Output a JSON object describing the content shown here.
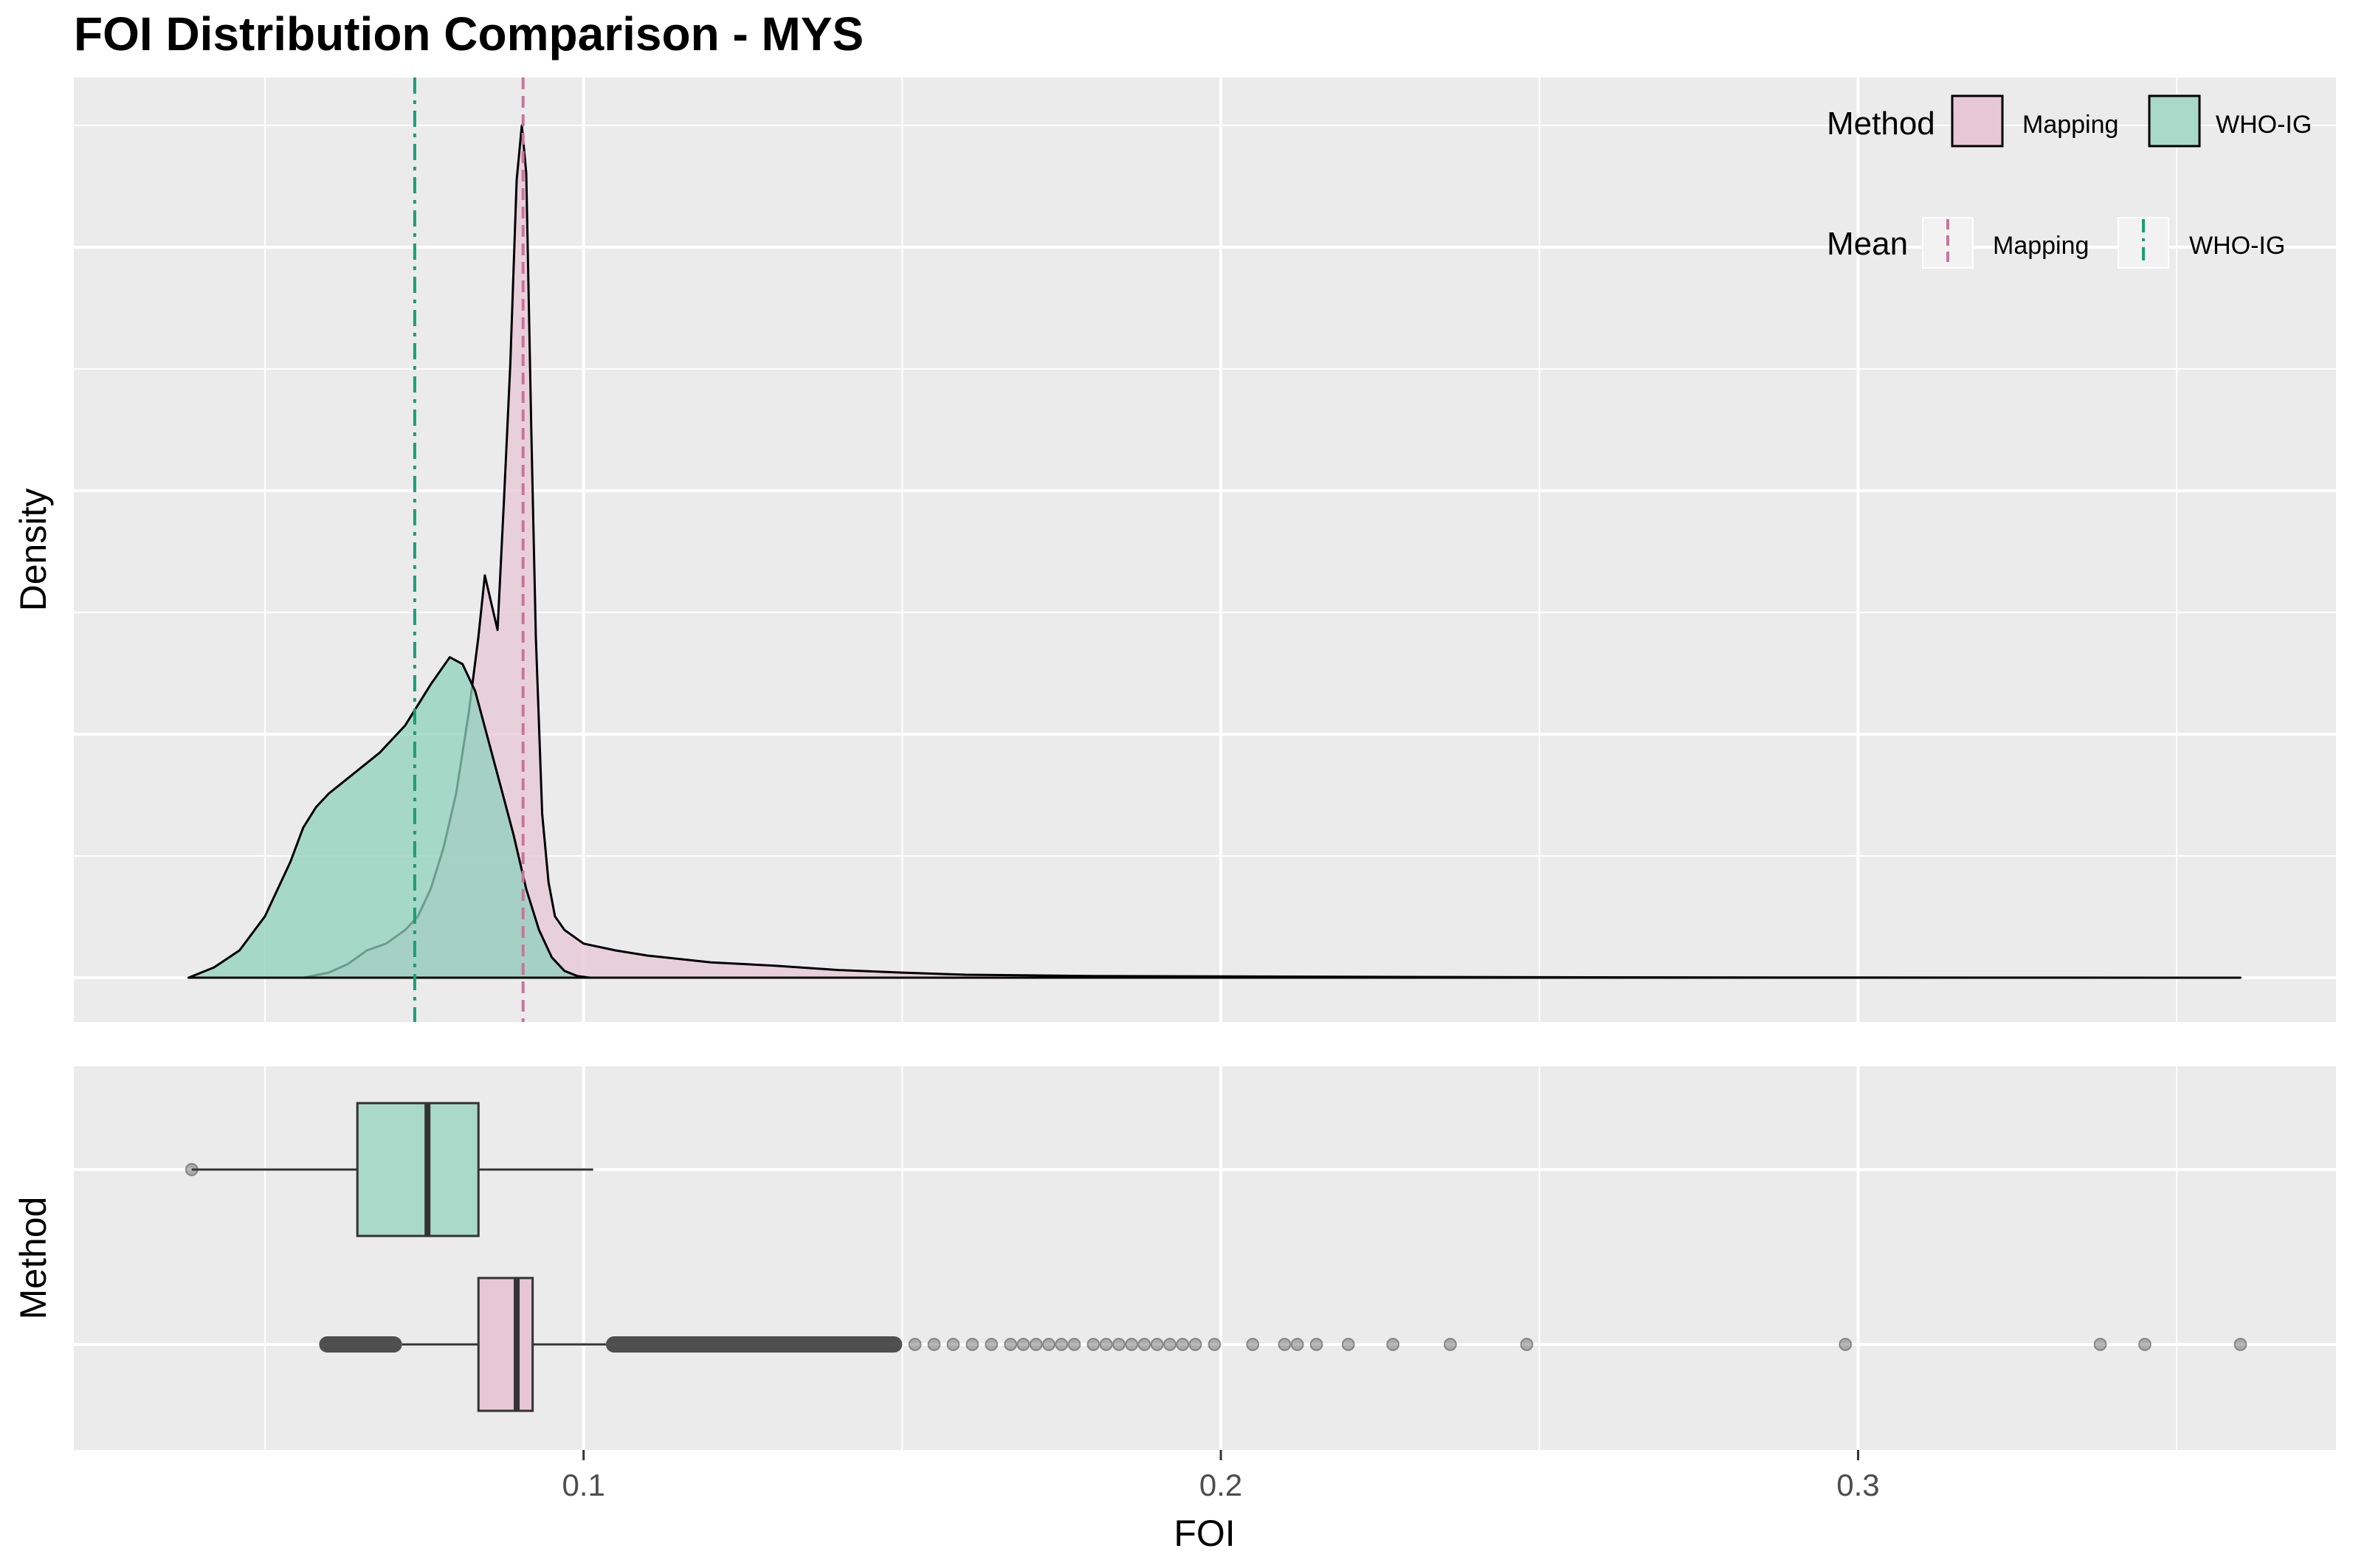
{
  "chart_data": {
    "type": "density+boxplot",
    "title": "FOI Distribution Comparison - MYS",
    "xlabel": "FOI",
    "ylabel_top": "Density",
    "ylabel_bottom": "Method",
    "xlim": [
      0.02,
      0.375
    ],
    "x_ticks": [
      0.1,
      0.2,
      0.3
    ],
    "x_tick_labels": [
      "0.1",
      "0.2",
      "0.3"
    ],
    "grid": true,
    "colors": {
      "panel_bg": "#EBEBEB",
      "grid": "#FFFFFF",
      "mapping_fill": "#E7C7D6",
      "mapping_line": "#C9739F",
      "who_fill": "#8FD1BC",
      "who_line": "#1B9E77",
      "outline": "#000000",
      "box_line": "#333333",
      "outlier": "#333333"
    },
    "legend": {
      "position": "top-right",
      "fill_title": "Method",
      "line_title": "Mean",
      "entries": [
        "Mapping",
        "WHO-IG"
      ]
    },
    "means": {
      "Mapping": 0.0905,
      "WHO-IG": 0.0735
    },
    "series": [
      {
        "name": "Mapping",
        "x": [
          0.056,
          0.06,
          0.063,
          0.066,
          0.069,
          0.072,
          0.074,
          0.076,
          0.078,
          0.08,
          0.082,
          0.0835,
          0.0845,
          0.0855,
          0.0865,
          0.0875,
          0.0885,
          0.0895,
          0.0903,
          0.091,
          0.0918,
          0.0925,
          0.0935,
          0.0945,
          0.0955,
          0.097,
          0.1,
          0.105,
          0.11,
          0.12,
          0.13,
          0.14,
          0.15,
          0.16,
          0.18,
          0.2,
          0.22,
          0.25,
          0.3,
          0.36
        ],
        "density": [
          0.0,
          0.6,
          1.6,
          3.2,
          4.0,
          5.6,
          7.2,
          10.4,
          15.2,
          21.6,
          31.2,
          40.0,
          47.2,
          44.0,
          40.8,
          56.0,
          72.0,
          93.6,
          100.0,
          94.4,
          64.0,
          40.0,
          19.2,
          11.2,
          7.2,
          5.6,
          4.0,
          3.2,
          2.6,
          1.8,
          1.4,
          0.9,
          0.6,
          0.35,
          0.2,
          0.15,
          0.1,
          0.05,
          0.02,
          0.0
        ]
      },
      {
        "name": "WHO-IG",
        "x": [
          0.038,
          0.042,
          0.046,
          0.05,
          0.054,
          0.056,
          0.058,
          0.06,
          0.064,
          0.068,
          0.072,
          0.076,
          0.079,
          0.081,
          0.083,
          0.085,
          0.087,
          0.089,
          0.091,
          0.093,
          0.095,
          0.097,
          0.099,
          0.101
        ],
        "density": [
          0.0,
          1.2,
          3.2,
          7.2,
          13.6,
          17.6,
          20.0,
          21.6,
          24.0,
          26.4,
          29.6,
          34.4,
          37.6,
          36.8,
          33.6,
          28.0,
          22.4,
          16.8,
          10.4,
          5.6,
          2.4,
          0.8,
          0.2,
          0.0
        ]
      }
    ],
    "boxplots": [
      {
        "name": "WHO-IG",
        "whisker_low": 0.0385,
        "q1": 0.0645,
        "median": 0.0755,
        "q3": 0.0835,
        "whisker_high": 0.1015,
        "outliers": [
          0.0385
        ]
      },
      {
        "name": "Mapping",
        "whisker_low": 0.0715,
        "q1": 0.0835,
        "median": 0.0895,
        "q3": 0.092,
        "whisker_high": 0.1035,
        "outlier_bands": [
          [
            0.0585,
            0.0715
          ],
          [
            0.1035,
            0.15
          ]
        ],
        "outliers": [
          0.152,
          0.155,
          0.158,
          0.161,
          0.164,
          0.167,
          0.169,
          0.171,
          0.173,
          0.175,
          0.177,
          0.18,
          0.182,
          0.184,
          0.186,
          0.188,
          0.19,
          0.192,
          0.194,
          0.196,
          0.199,
          0.205,
          0.21,
          0.212,
          0.215,
          0.22,
          0.227,
          0.236,
          0.248,
          0.298,
          0.338,
          0.345,
          0.36
        ]
      }
    ]
  }
}
